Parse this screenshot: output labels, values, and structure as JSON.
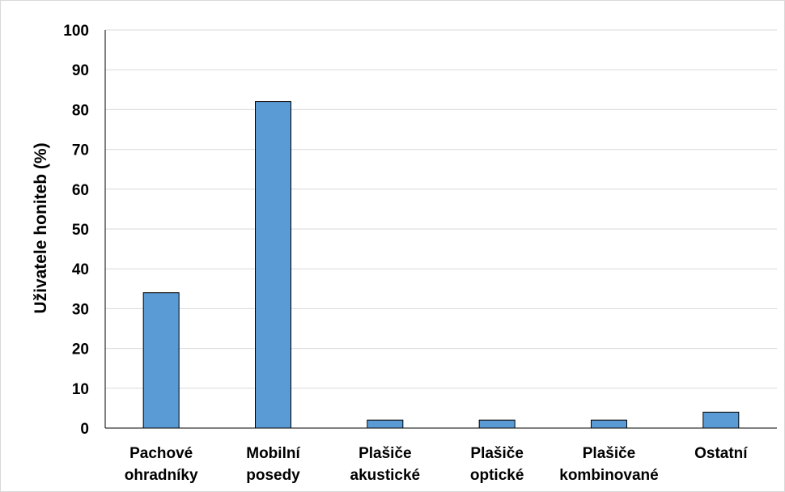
{
  "chart_data": {
    "type": "bar",
    "categories": [
      [
        "Pachové",
        "ohradníky"
      ],
      [
        "Mobilní",
        "posedy"
      ],
      [
        "Plašiče",
        "akustické"
      ],
      [
        "Plašiče",
        "optické"
      ],
      [
        "Plašiče",
        "kombinované"
      ],
      [
        "Ostatní"
      ]
    ],
    "values": [
      34,
      82,
      2,
      2,
      2,
      4
    ],
    "title": "",
    "xlabel": "",
    "ylabel": "Uživatele honiteb (%)",
    "ylim": [
      0,
      100
    ],
    "yticks": [
      0,
      10,
      20,
      30,
      40,
      50,
      60,
      70,
      80,
      90,
      100
    ],
    "grid": true,
    "colors": {
      "bar": "#5b9bd5",
      "bar_edge": "#000000",
      "grid": "#d9d9d9",
      "axis": "#000000"
    }
  }
}
